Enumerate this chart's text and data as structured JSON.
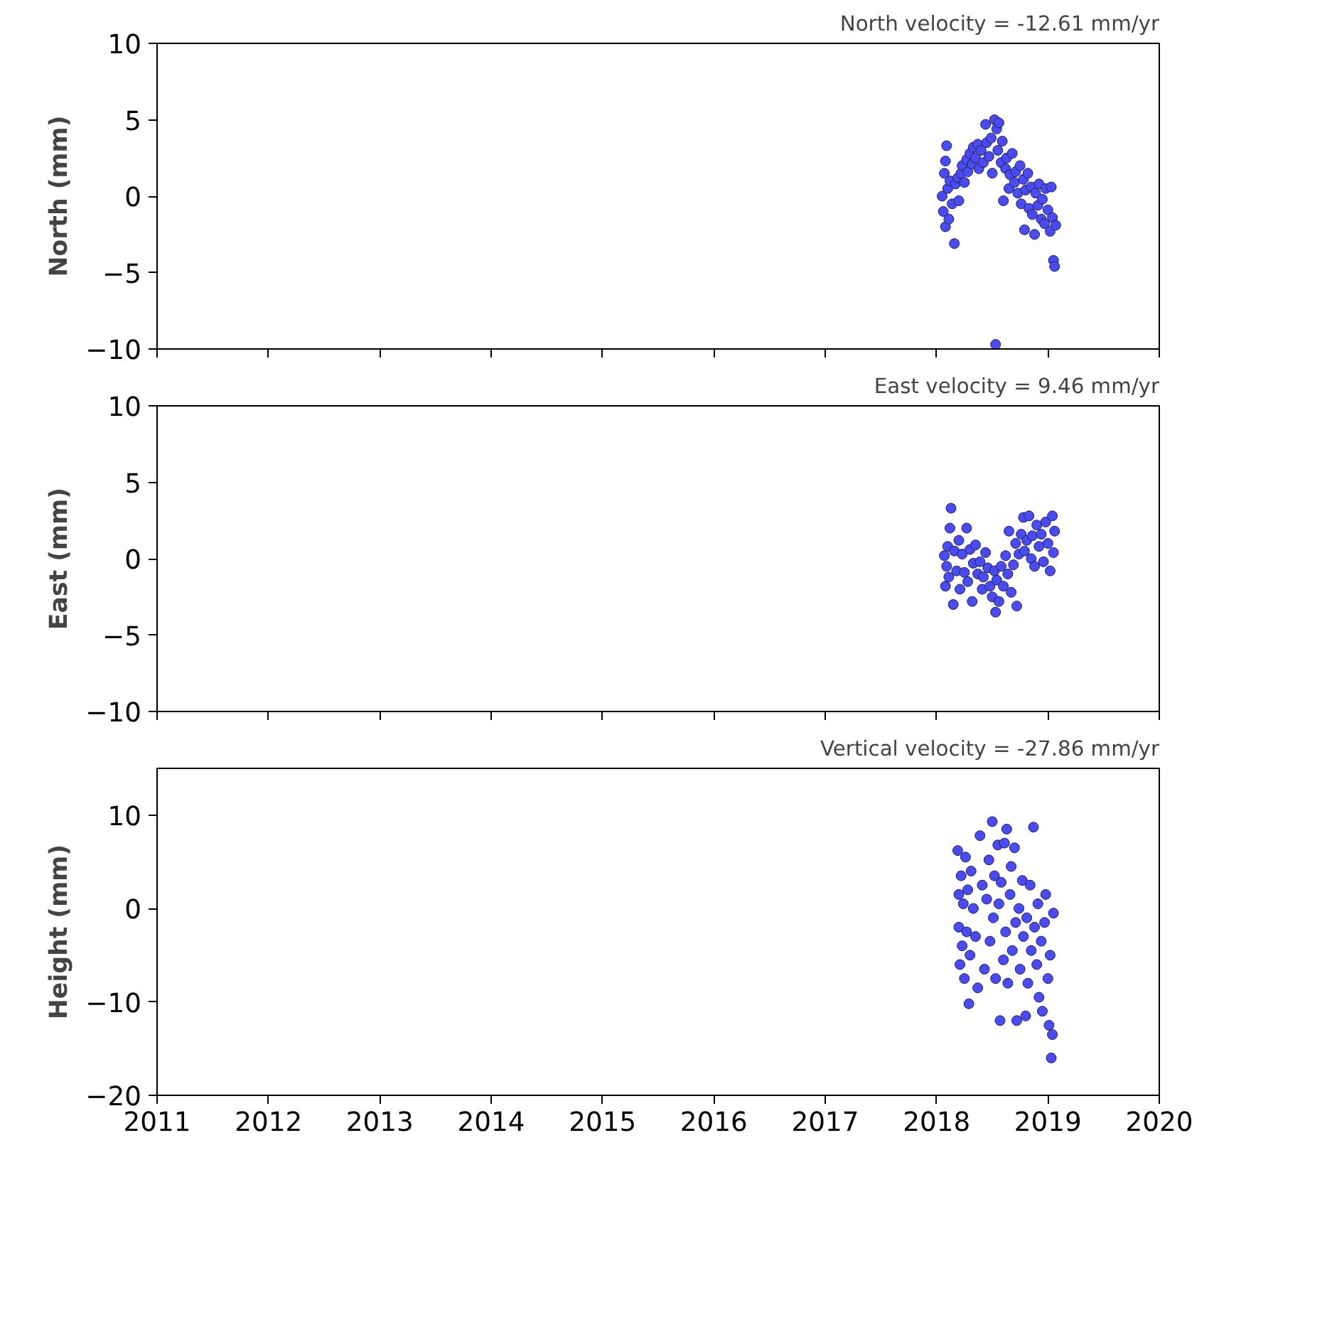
{
  "chart_data": [
    {
      "type": "scatter",
      "ylabel": "North (mm)",
      "annotations": [
        "North velocity = -12.61 mm/yr"
      ],
      "color": "#4b4bf5",
      "marker": "circle",
      "grid": false,
      "tick_labels": "y",
      "xlim": [
        2011,
        2020
      ],
      "xticks": [
        2011,
        2012,
        2013,
        2014,
        2015,
        2016,
        2017,
        2018,
        2019,
        2020
      ],
      "ylim": [
        -10,
        10
      ],
      "yticks": [
        -10,
        -5,
        0,
        5,
        10
      ],
      "x": [
        2018.05,
        2018.06,
        2018.07,
        2018.08,
        2018.08,
        2018.09,
        2018.1,
        2018.11,
        2018.12,
        2018.14,
        2018.16,
        2018.17,
        2018.19,
        2018.2,
        2018.22,
        2018.23,
        2018.25,
        2018.27,
        2018.28,
        2018.3,
        2018.32,
        2018.33,
        2018.35,
        2018.37,
        2018.38,
        2018.4,
        2018.42,
        2018.44,
        2018.45,
        2018.47,
        2018.49,
        2018.5,
        2018.52,
        2018.53,
        2018.54,
        2018.55,
        2018.56,
        2018.58,
        2018.59,
        2018.6,
        2018.62,
        2018.63,
        2018.65,
        2018.66,
        2018.68,
        2018.7,
        2018.71,
        2018.73,
        2018.75,
        2018.76,
        2018.78,
        2018.79,
        2018.8,
        2018.82,
        2018.83,
        2018.85,
        2018.86,
        2018.88,
        2018.89,
        2018.91,
        2018.92,
        2018.94,
        2018.95,
        2018.97,
        2018.98,
        2019.0,
        2019.02,
        2019.03,
        2019.04,
        2019.05,
        2019.06,
        2019.07
      ],
      "values": [
        0.0,
        -1.0,
        1.5,
        2.3,
        -2.0,
        3.3,
        0.5,
        -1.5,
        1.0,
        -0.5,
        -3.1,
        0.8,
        1.2,
        -0.3,
        1.5,
        2.0,
        0.9,
        2.4,
        1.6,
        2.8,
        2.1,
        3.2,
        2.5,
        3.4,
        1.8,
        3.0,
        2.2,
        4.7,
        3.5,
        2.6,
        3.8,
        1.5,
        5.0,
        -9.7,
        4.4,
        3.0,
        4.8,
        2.2,
        3.6,
        -0.3,
        1.8,
        2.5,
        0.5,
        1.4,
        2.8,
        0.9,
        1.6,
        0.2,
        2.0,
        -0.5,
        1.1,
        -2.2,
        0.4,
        1.5,
        -0.8,
        0.6,
        -1.2,
        -2.5,
        0.2,
        -0.6,
        0.8,
        -1.5,
        -0.2,
        -1.8,
        0.5,
        -0.9,
        -2.3,
        0.6,
        -1.4,
        -4.2,
        -4.6,
        -1.9
      ]
    },
    {
      "type": "scatter",
      "ylabel": "East (mm)",
      "annotations": [
        "East velocity = 9.46 mm/yr"
      ],
      "color": "#4b4bf5",
      "marker": "circle",
      "grid": false,
      "tick_labels": "y",
      "xlim": [
        2011,
        2020
      ],
      "xticks": [
        2011,
        2012,
        2013,
        2014,
        2015,
        2016,
        2017,
        2018,
        2019,
        2020
      ],
      "ylim": [
        -10,
        10
      ],
      "yticks": [
        -10,
        -5,
        0,
        5,
        10
      ],
      "x": [
        2018.07,
        2018.08,
        2018.09,
        2018.1,
        2018.11,
        2018.12,
        2018.13,
        2018.15,
        2018.16,
        2018.18,
        2018.2,
        2018.21,
        2018.23,
        2018.25,
        2018.27,
        2018.28,
        2018.3,
        2018.32,
        2018.33,
        2018.35,
        2018.37,
        2018.39,
        2018.41,
        2018.42,
        2018.44,
        2018.46,
        2018.48,
        2018.5,
        2018.52,
        2018.53,
        2018.54,
        2018.56,
        2018.58,
        2018.6,
        2018.62,
        2018.64,
        2018.65,
        2018.67,
        2018.69,
        2018.71,
        2018.72,
        2018.74,
        2018.76,
        2018.78,
        2018.79,
        2018.81,
        2018.83,
        2018.85,
        2018.86,
        2018.88,
        2018.9,
        2018.92,
        2018.94,
        2018.96,
        2018.98,
        2019.0,
        2019.02,
        2019.04,
        2019.05,
        2019.06
      ],
      "values": [
        0.2,
        -1.8,
        -0.5,
        0.8,
        -1.2,
        2.0,
        3.3,
        -3.0,
        0.5,
        -0.8,
        1.2,
        -2.0,
        0.3,
        -0.9,
        2.0,
        -1.5,
        0.6,
        -2.8,
        -0.3,
        0.9,
        -1.0,
        -0.2,
        -2.0,
        -1.2,
        0.4,
        -0.6,
        -1.8,
        -2.5,
        -0.8,
        -3.5,
        -1.4,
        -2.8,
        -0.5,
        -1.8,
        0.2,
        -1.0,
        1.8,
        -2.2,
        -0.4,
        1.0,
        -3.1,
        0.3,
        1.6,
        2.7,
        0.5,
        1.2,
        2.8,
        0.0,
        1.5,
        -0.5,
        2.2,
        0.8,
        1.6,
        -0.2,
        2.4,
        1.0,
        -0.8,
        2.8,
        0.4,
        1.8
      ]
    },
    {
      "type": "scatter",
      "ylabel": "Height (mm)",
      "annotations": [
        "Vertical velocity = -27.86 mm/yr"
      ],
      "color": "#4b4bf5",
      "marker": "circle",
      "grid": false,
      "xlim": [
        2011,
        2020
      ],
      "xticks": [
        2011,
        2012,
        2013,
        2014,
        2015,
        2016,
        2017,
        2018,
        2019,
        2020
      ],
      "ylim": [
        -20,
        15
      ],
      "yticks": [
        -20,
        -10,
        0,
        10
      ],
      "x": [
        2018.19,
        2018.2,
        2018.2,
        2018.21,
        2018.22,
        2018.23,
        2018.24,
        2018.25,
        2018.26,
        2018.27,
        2018.28,
        2018.29,
        2018.3,
        2018.31,
        2018.33,
        2018.35,
        2018.37,
        2018.39,
        2018.41,
        2018.43,
        2018.45,
        2018.47,
        2018.48,
        2018.5,
        2018.51,
        2018.52,
        2018.53,
        2018.55,
        2018.56,
        2018.57,
        2018.58,
        2018.6,
        2018.61,
        2018.62,
        2018.63,
        2018.64,
        2018.66,
        2018.67,
        2018.68,
        2018.7,
        2018.71,
        2018.72,
        2018.74,
        2018.75,
        2018.77,
        2018.78,
        2018.8,
        2018.81,
        2018.82,
        2018.84,
        2018.85,
        2018.87,
        2018.88,
        2018.9,
        2018.91,
        2018.92,
        2018.94,
        2018.95,
        2018.97,
        2018.98,
        2019.0,
        2019.01,
        2019.02,
        2019.03,
        2019.04,
        2019.05
      ],
      "values": [
        6.2,
        -2.0,
        1.5,
        -6.0,
        3.5,
        -4.0,
        0.5,
        -7.5,
        5.5,
        -2.5,
        2.0,
        -10.2,
        -5.0,
        4.0,
        0.0,
        -3.0,
        -8.5,
        7.8,
        2.5,
        -6.5,
        1.0,
        5.2,
        -3.5,
        9.3,
        -1.0,
        3.5,
        -7.5,
        6.8,
        0.5,
        -12.0,
        2.8,
        -5.5,
        7.0,
        -2.5,
        8.5,
        -8.0,
        1.5,
        4.5,
        -4.5,
        6.5,
        -1.5,
        -12.0,
        0.0,
        -6.5,
        3.0,
        -3.0,
        -11.5,
        -1.0,
        -8.0,
        2.5,
        -4.5,
        8.7,
        -2.0,
        -6.0,
        0.5,
        -9.5,
        -3.5,
        -11.0,
        -1.5,
        1.5,
        -7.5,
        -12.5,
        -5.0,
        -16.0,
        -13.5,
        -0.5
      ]
    }
  ]
}
